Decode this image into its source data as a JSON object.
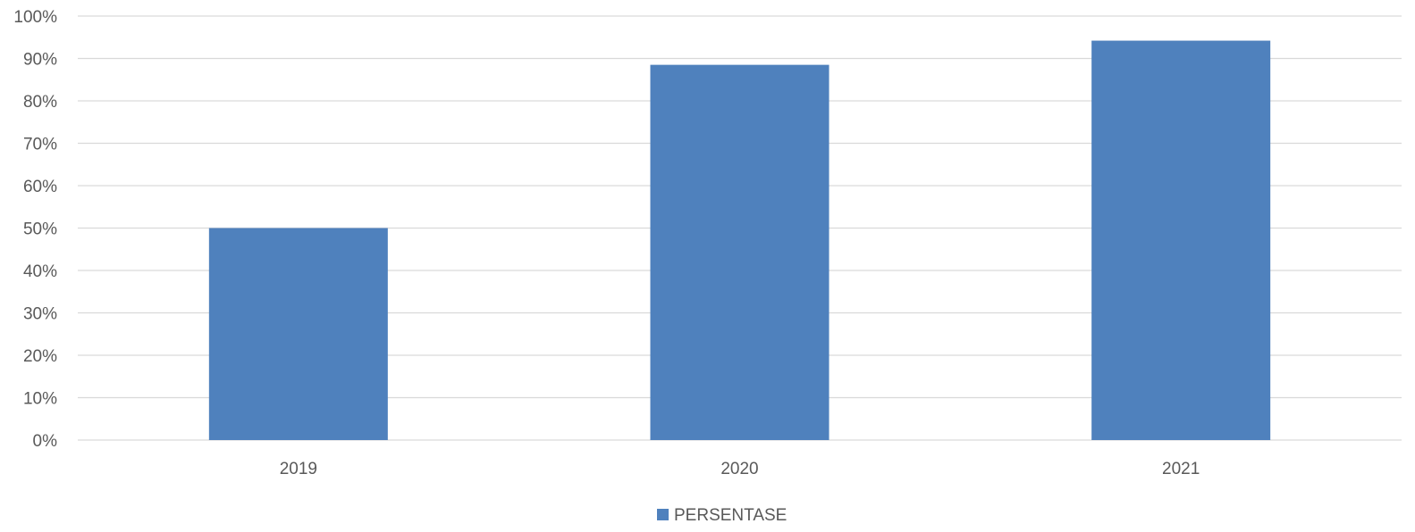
{
  "chart_data": {
    "type": "bar",
    "categories": [
      "2019",
      "2020",
      "2021"
    ],
    "series": [
      {
        "name": "PERSENTASE",
        "values": [
          50,
          88.5,
          94.2
        ],
        "color": "#4f81bd"
      }
    ],
    "ylim": [
      0,
      100
    ],
    "y_ticks": [
      0,
      10,
      20,
      30,
      40,
      50,
      60,
      70,
      80,
      90,
      100
    ],
    "y_tick_format": "percent",
    "grid": true,
    "legend_position": "bottom"
  }
}
